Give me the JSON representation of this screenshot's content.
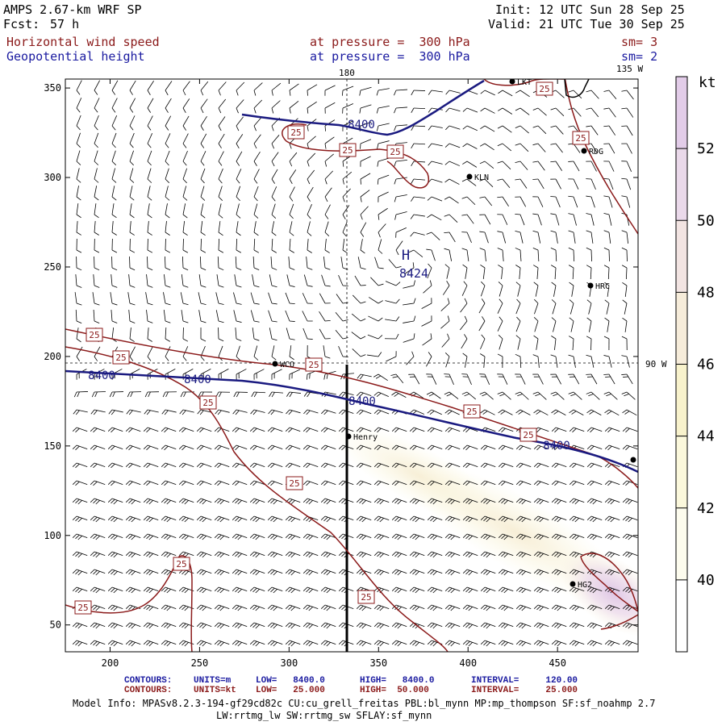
{
  "header": {
    "model": "AMPS 2.67-km WRF SP",
    "forecast_label": "Fcst:",
    "forecast_hours": "57 h",
    "init": "Init: 12 UTC Sun 28 Sep 25",
    "valid": "Valid: 21 UTC Tue 30 Sep 25",
    "field1": "Horizontal wind speed",
    "field1_level": "at pressure =  300 hPa",
    "field1_sm": "sm= 3",
    "field2": "Geopotential height",
    "field2_level": "at pressure =  300 hPa",
    "field2_sm": "sm= 2"
  },
  "map": {
    "x_ticks": [
      "200",
      "250",
      "300",
      "350",
      "400",
      "450"
    ],
    "y_ticks": [
      "350",
      "300",
      "250",
      "200",
      "150",
      "100",
      "50"
    ],
    "lon_labels": [
      "180",
      "135 W",
      "90 W"
    ],
    "high_label": "H",
    "high_value": "8424",
    "height_contour_labels": [
      "8400",
      "8400",
      "8400",
      "8400",
      "8400"
    ],
    "speed_contour_labels": [
      "25",
      "25",
      "25",
      "25",
      "25",
      "25",
      "25",
      "25",
      "25",
      "25",
      "25",
      "25",
      "25"
    ],
    "stations": [
      "KLN",
      "RDG",
      "HRC",
      "WCO",
      "Henry",
      "HG2",
      "LKT"
    ]
  },
  "colorbar": {
    "unit": "kt",
    "labels": [
      "52",
      "50",
      "48",
      "46",
      "44",
      "42",
      "40"
    ],
    "colors": [
      "#e2cce8",
      "#ead9ea",
      "#f2e4e2",
      "#f6ecda",
      "#f8f2cc",
      "#fbf8dc",
      "#fdfcee",
      "#ffffff"
    ]
  },
  "footer": {
    "line1_label": "CONTOURS:",
    "line1_units": "UNITS=m",
    "line1_low": "LOW=   8400.0",
    "line1_high": "HIGH=   8400.0",
    "line1_interval": "INTERVAL=     120.00",
    "line2_label": "CONTOURS:",
    "line2_units": "UNITS=kt",
    "line2_low": "LOW=   25.000",
    "line2_high": "HIGH=  50.000",
    "line2_interval": "INTERVAL=     25.000",
    "model_info": "Model Info: MPASv8.2.3-194-gf29cd82c CU:cu_grell_freitas PBL:bl_mynn MP:mp_thompson SF:sf_noahmp 2.7",
    "model_info2": "LW:rrtmg_lw SW:rrtmg_sw SFLAY:sf_mynn"
  }
}
